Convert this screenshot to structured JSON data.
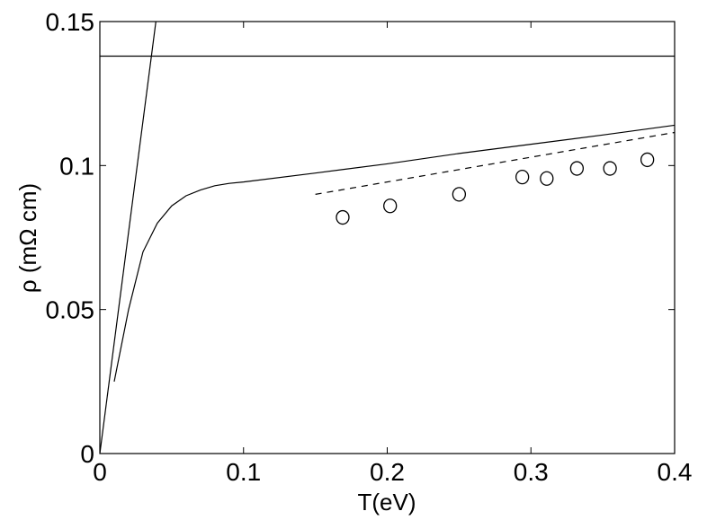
{
  "chart_data": {
    "type": "line",
    "xlabel": "T(eV)",
    "ylabel": "ρ (mΩ cm)",
    "xlim": [
      0,
      0.4
    ],
    "ylim": [
      0,
      0.15
    ],
    "xticks": [
      0,
      0.1,
      0.2,
      0.3,
      0.4
    ],
    "xtick_labels": [
      "0",
      "0.1",
      "0.2",
      "0.3",
      "0.4"
    ],
    "yticks": [
      0,
      0.05,
      0.1,
      0.15
    ],
    "ytick_labels": [
      "0",
      "0.05",
      "0.1",
      "0.15"
    ],
    "grid": false,
    "series": [
      {
        "style": "solid",
        "x": [
          0,
          0.039
        ],
        "y": [
          0,
          0.15
        ]
      },
      {
        "style": "solid",
        "x": [
          0,
          0.4
        ],
        "y": [
          0.138,
          0.138
        ]
      },
      {
        "style": "solid",
        "x": [
          0.01,
          0.02,
          0.03,
          0.04,
          0.05,
          0.06,
          0.07,
          0.08,
          0.09,
          0.1,
          0.15,
          0.2,
          0.25,
          0.3,
          0.35,
          0.4
        ],
        "y": [
          0.025,
          0.05,
          0.07,
          0.08,
          0.086,
          0.0895,
          0.0915,
          0.093,
          0.0938,
          0.0943,
          0.0974,
          0.1006,
          0.1042,
          0.1074,
          0.1106,
          0.114
        ]
      },
      {
        "style": "dashed",
        "x": [
          0.15,
          0.4
        ],
        "y": [
          0.09,
          0.1115
        ]
      },
      {
        "style": "markers",
        "marker": "circle",
        "x": [
          0.169,
          0.202,
          0.25,
          0.294,
          0.311,
          0.332,
          0.355,
          0.381
        ],
        "y": [
          0.082,
          0.086,
          0.09,
          0.096,
          0.0955,
          0.099,
          0.099,
          0.102
        ]
      }
    ]
  }
}
